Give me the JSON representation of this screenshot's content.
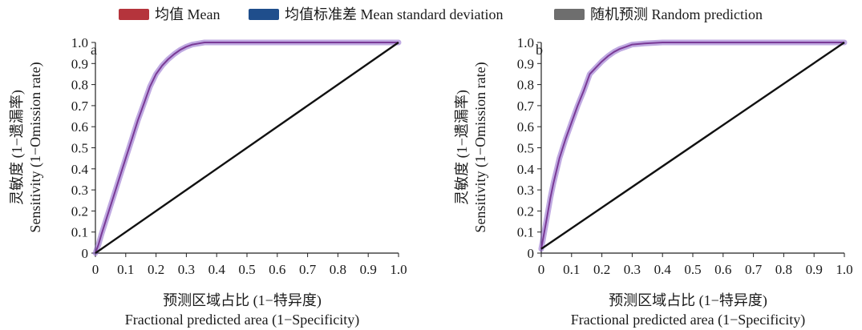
{
  "legend": {
    "items": [
      {
        "label": "均值 Mean",
        "color": "#b5343c"
      },
      {
        "label": "均值标准差 Mean standard deviation",
        "color": "#1f4e8c"
      },
      {
        "label": "随机预测 Random prediction",
        "color": "#6e6e6e"
      }
    ]
  },
  "colors": {
    "mean": "#7a3a96",
    "sd_band": "#8a62c8",
    "random": "#111111"
  },
  "chart_data": [
    {
      "type": "line",
      "panel_label": "a",
      "xlabel_cn": "预测区域占比 (1−特异度)",
      "xlabel_en": "Fractional predicted area (1−Specificity)",
      "ylabel_cn": "灵敏度 (1−遗漏率)",
      "ylabel_en": "Sensitivity (1−Omission rate)",
      "xlim": [
        0,
        1.0
      ],
      "ylim": [
        0,
        1.0
      ],
      "x_ticks": [
        "0",
        "0.1",
        "0.2",
        "0.3",
        "0.4",
        "0.5",
        "0.6",
        "0.7",
        "0.8",
        "0.9",
        "1.0"
      ],
      "y_ticks": [
        "0",
        "0.1",
        "0.2",
        "0.3",
        "0.4",
        "0.5",
        "0.6",
        "0.7",
        "0.8",
        "0.9",
        "1.0"
      ],
      "series": [
        {
          "name": "均值 Mean",
          "x": [
            0,
            0.01,
            0.02,
            0.04,
            0.06,
            0.08,
            0.1,
            0.12,
            0.14,
            0.16,
            0.18,
            0.2,
            0.22,
            0.24,
            0.26,
            0.28,
            0.3,
            0.32,
            0.34,
            0.36,
            0.4,
            0.5,
            0.6,
            0.7,
            0.8,
            0.9,
            1.0
          ],
          "y": [
            0,
            0.04,
            0.09,
            0.18,
            0.27,
            0.36,
            0.45,
            0.54,
            0.63,
            0.71,
            0.79,
            0.85,
            0.89,
            0.92,
            0.945,
            0.965,
            0.98,
            0.99,
            0.995,
            1.0,
            1.0,
            1.0,
            1.0,
            1.0,
            1.0,
            1.0,
            1.0
          ]
        },
        {
          "name": "随机预测 Random prediction",
          "x": [
            0,
            1.0
          ],
          "y": [
            0,
            1.0
          ]
        }
      ]
    },
    {
      "type": "line",
      "panel_label": "b",
      "xlabel_cn": "预测区域占比 (1−特异度)",
      "xlabel_en": "Fractional predicted area (1−Specificity)",
      "ylabel_cn": "灵敏度 (1−遗漏率)",
      "ylabel_en": "Sensitivity (1−Omission rate)",
      "xlim": [
        0,
        1.0
      ],
      "ylim": [
        0,
        1.0
      ],
      "x_ticks": [
        "0",
        "0.1",
        "0.2",
        "0.3",
        "0.4",
        "0.5",
        "0.6",
        "0.7",
        "0.8",
        "0.9",
        "1.0"
      ],
      "y_ticks": [
        "0",
        "0.1",
        "0.2",
        "0.3",
        "0.4",
        "0.5",
        "0.6",
        "0.7",
        "0.8",
        "0.9",
        "1.0"
      ],
      "series": [
        {
          "name": "均值 Mean",
          "x": [
            0,
            0.005,
            0.01,
            0.02,
            0.03,
            0.04,
            0.05,
            0.06,
            0.08,
            0.1,
            0.12,
            0.14,
            0.16,
            0.18,
            0.2,
            0.22,
            0.24,
            0.26,
            0.28,
            0.3,
            0.34,
            0.4,
            0.5,
            0.6,
            0.7,
            0.8,
            0.9,
            1.0
          ],
          "y": [
            0.02,
            0.06,
            0.1,
            0.18,
            0.26,
            0.33,
            0.39,
            0.45,
            0.54,
            0.62,
            0.7,
            0.77,
            0.85,
            0.88,
            0.91,
            0.935,
            0.955,
            0.97,
            0.98,
            0.99,
            0.995,
            1.0,
            1.0,
            1.0,
            1.0,
            1.0,
            1.0,
            1.0
          ]
        },
        {
          "name": "随机预测 Random prediction",
          "x": [
            0,
            1.0
          ],
          "y": [
            0.02,
            1.0
          ]
        }
      ]
    }
  ]
}
